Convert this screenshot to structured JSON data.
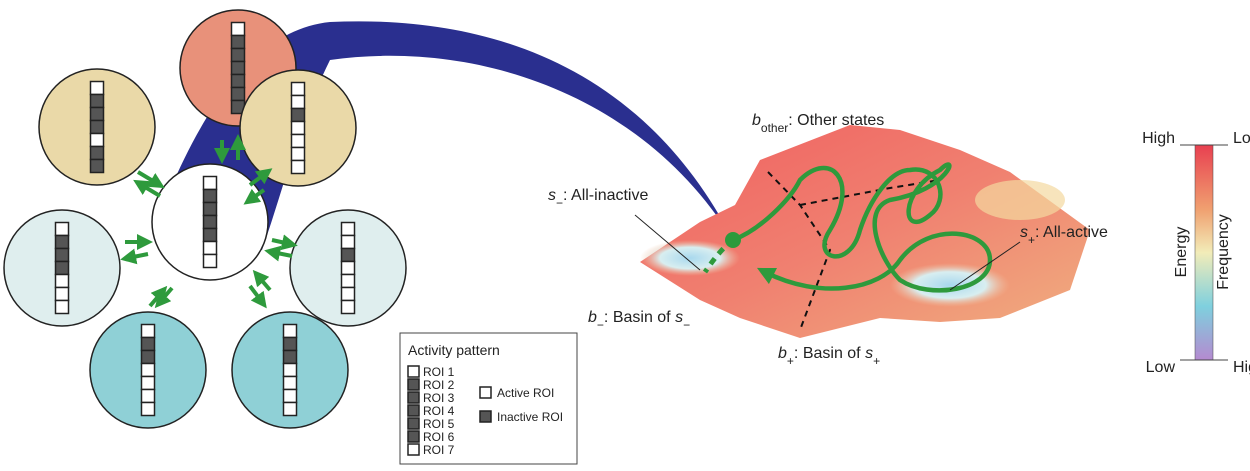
{
  "circles": [
    {
      "color": "#e8917a",
      "pattern": [
        1,
        0,
        0,
        0,
        0,
        0,
        0
      ]
    },
    {
      "color": "#ead9a8",
      "pattern": [
        1,
        0,
        0,
        0,
        1,
        0,
        0
      ]
    },
    {
      "color": "#ead9a8",
      "pattern": [
        1,
        1,
        0,
        1,
        1,
        1,
        1
      ]
    },
    {
      "color": "#dfeeee",
      "pattern": [
        1,
        0,
        0,
        0,
        1,
        1,
        1
      ]
    },
    {
      "color": "#ffffff",
      "pattern": [
        1,
        0,
        0,
        0,
        0,
        1,
        1
      ]
    },
    {
      "color": "#dfeeee",
      "pattern": [
        1,
        1,
        0,
        1,
        1,
        1,
        1
      ]
    },
    {
      "color": "#8fd0d6",
      "pattern": [
        1,
        0,
        0,
        1,
        1,
        1,
        1
      ]
    },
    {
      "color": "#8fd0d6",
      "pattern": [
        1,
        0,
        0,
        1,
        1,
        1,
        1
      ]
    }
  ],
  "legend": {
    "title": "Activity pattern",
    "rois": [
      "ROI 1",
      "ROI 2",
      "ROI 3",
      "ROI 4",
      "ROI 5",
      "ROI 6",
      "ROI 7"
    ],
    "pattern": [
      1,
      0,
      0,
      0,
      0,
      0,
      1
    ],
    "active": "Active ROI",
    "inactive": "Inactive ROI"
  },
  "landscape": {
    "other": [
      {
        "text": "b",
        "style": "italic"
      },
      {
        "text": "other",
        "style": "sub"
      },
      {
        "text": ": Other states"
      }
    ],
    "minus": [
      {
        "text": "s",
        "style": "italic"
      },
      {
        "text": "−",
        "style": "sub"
      },
      {
        "text": ": All-inactive"
      }
    ],
    "plus": [
      {
        "text": "s",
        "style": "italic"
      },
      {
        "text": "+",
        "style": "sub"
      },
      {
        "text": ": All-active"
      }
    ],
    "basin_minus": [
      {
        "text": "b",
        "style": "italic"
      },
      {
        "text": "−",
        "style": "sub"
      },
      {
        "text": ": Basin of "
      },
      {
        "text": "s",
        "style": "italic"
      },
      {
        "text": "−",
        "style": "sub"
      }
    ],
    "basin_plus": [
      {
        "text": "b",
        "style": "italic"
      },
      {
        "text": "+",
        "style": "sub"
      },
      {
        "text": ": Basin of "
      },
      {
        "text": "s",
        "style": "italic"
      },
      {
        "text": "+",
        "style": "sub"
      }
    ]
  },
  "colorbar": {
    "energy": "Energy",
    "frequency": "Frequency",
    "energy_high": "High",
    "energy_low": "Low",
    "frequency_low": "Low",
    "frequency_high": "High"
  }
}
